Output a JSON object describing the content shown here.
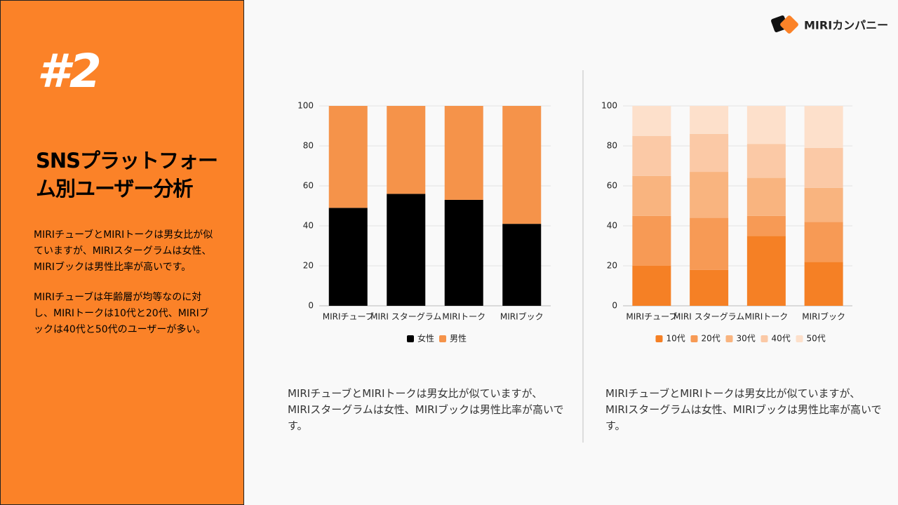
{
  "slide_number": "#2",
  "title": "SNSプラットフォーム別ユーザー分析",
  "paragraphs": [
    "MIRIチューブとMIRIトークは男女比が似ていますが、MIRIスターグラムは女性、MIRIブックは男性比率が高いです。",
    "MIRIチューブは年齢層が均等なのに対し、MIRIトークは10代と20代、MIRIブックは40代と50代のユーザーが多い。"
  ],
  "logo": "MIRIカンパニー",
  "chart_data": [
    {
      "type": "stacked_bar",
      "categories": [
        "MIRIチューブ",
        "MIRI スターグラム",
        "MIRIトーク",
        "MIRIブック"
      ],
      "series": [
        {
          "name": "女性",
          "color": "#000000",
          "values": [
            49,
            56,
            53,
            41
          ]
        },
        {
          "name": "男性",
          "color": "#f5934a",
          "values": [
            51,
            44,
            47,
            59
          ]
        }
      ],
      "ylim": [
        0,
        100
      ],
      "yticks": [
        0,
        20,
        40,
        60,
        80,
        100
      ],
      "grid": true,
      "caption": "MIRIチューブとMIRIトークは男女比が似ていますが、MIRIスターグラムは女性、MIRIブックは男性比率が高いです。"
    },
    {
      "type": "stacked_bar",
      "categories": [
        "MIRIチューブ",
        "MIRI スターグラム",
        "MIRIトーク",
        "MIRIブック"
      ],
      "series": [
        {
          "name": "10代",
          "color": "#f58025",
          "values": [
            20,
            18,
            35,
            22
          ]
        },
        {
          "name": "20代",
          "color": "#f79a55",
          "values": [
            25,
            26,
            10,
            20
          ]
        },
        {
          "name": "30代",
          "color": "#f9b47f",
          "values": [
            20,
            23,
            19,
            17
          ]
        },
        {
          "name": "40代",
          "color": "#fbc9a6",
          "values": [
            20,
            19,
            17,
            20
          ]
        },
        {
          "name": "50代",
          "color": "#fde0cb",
          "values": [
            15,
            14,
            19,
            21
          ]
        }
      ],
      "ylim": [
        0,
        100
      ],
      "yticks": [
        0,
        20,
        40,
        60,
        80,
        100
      ],
      "grid": true,
      "caption": "MIRIチューブとMIRIトークは男女比が似ていますが、MIRIスターグラムは女性、MIRIブックは男性比率が高いです。"
    }
  ]
}
